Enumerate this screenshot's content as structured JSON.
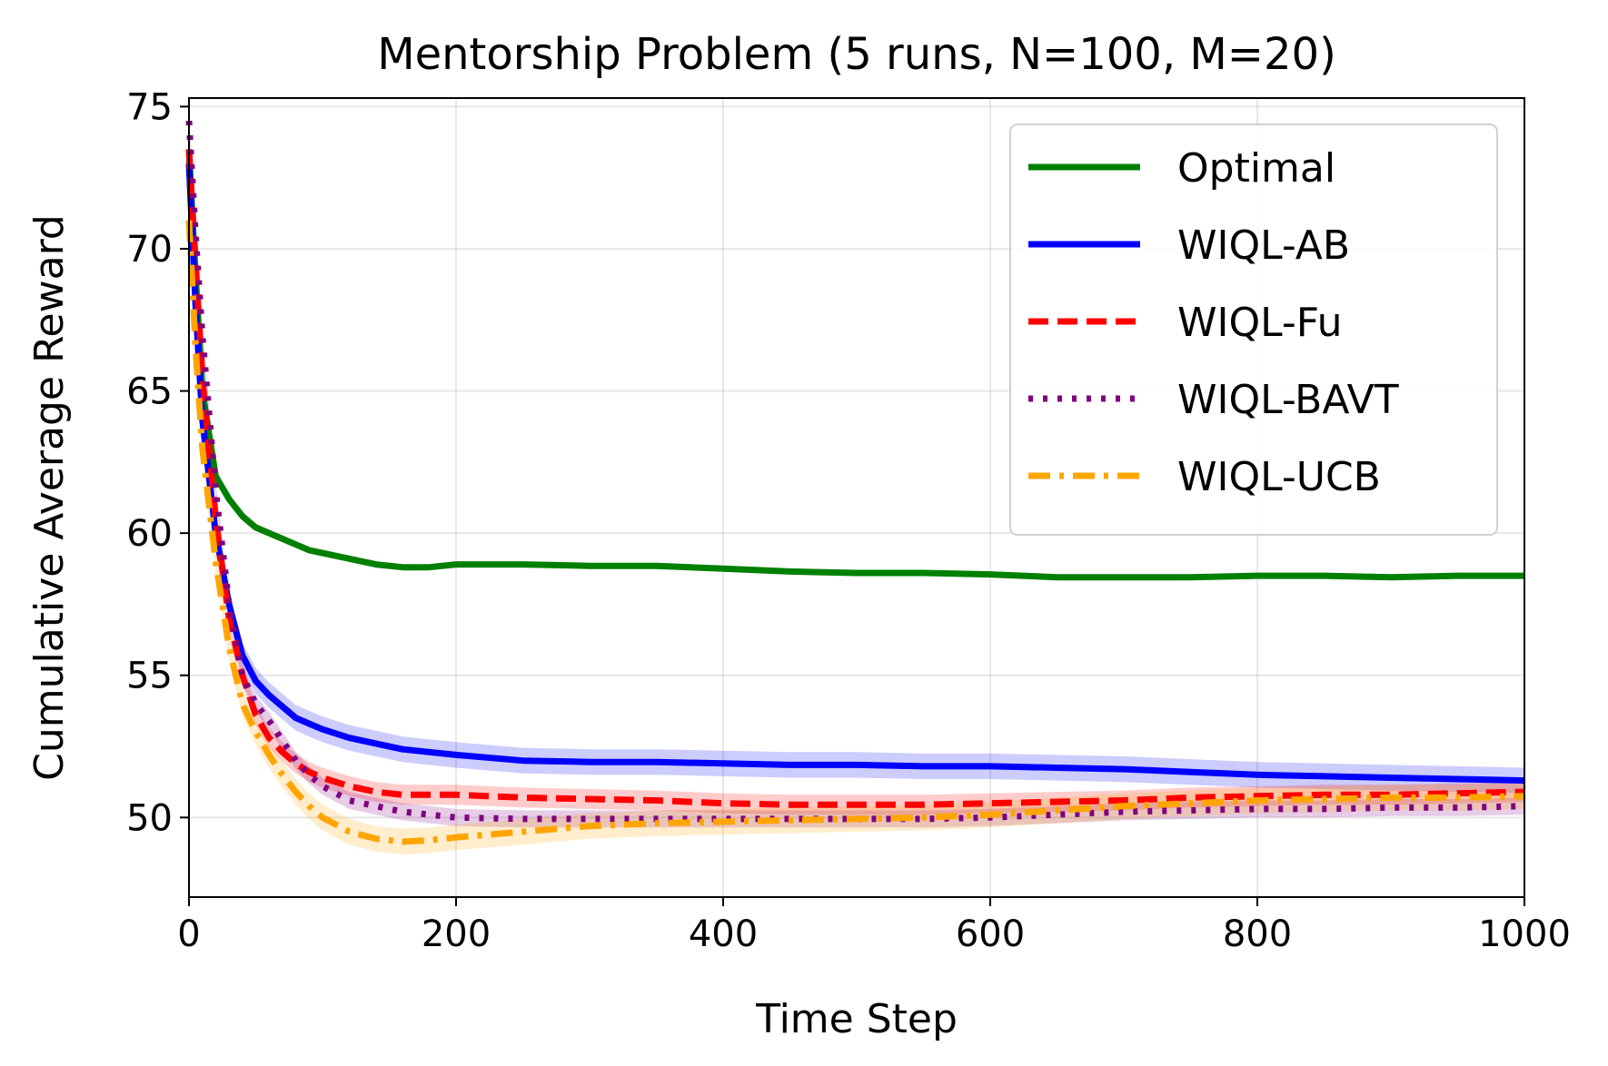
{
  "chart_data": {
    "type": "line",
    "title": "Mentorship Problem (5 runs, N=100, M=20)",
    "xlabel": "Time Step",
    "ylabel": "Cumulative Average Reward",
    "xlim": [
      0,
      1000
    ],
    "ylim": [
      47.2,
      75.3
    ],
    "xticks": [
      0,
      200,
      400,
      600,
      800,
      1000
    ],
    "yticks": [
      50,
      55,
      60,
      65,
      70,
      75
    ],
    "grid": true,
    "legend_position": "top-right",
    "series": [
      {
        "name": "Optimal",
        "color": "#008000",
        "dash": "solid",
        "band": 0.1,
        "x": [
          0,
          5,
          10,
          20,
          30,
          40,
          50,
          60,
          70,
          80,
          90,
          100,
          120,
          140,
          160,
          180,
          200,
          250,
          300,
          350,
          400,
          450,
          500,
          550,
          600,
          650,
          700,
          750,
          800,
          850,
          900,
          950,
          1000
        ],
        "y": [
          73.5,
          69.0,
          65.0,
          62.0,
          61.2,
          60.6,
          60.2,
          60.0,
          59.8,
          59.6,
          59.4,
          59.3,
          59.1,
          58.9,
          58.8,
          58.8,
          58.9,
          58.9,
          58.85,
          58.85,
          58.75,
          58.65,
          58.6,
          58.6,
          58.55,
          58.45,
          58.45,
          58.45,
          58.5,
          58.5,
          58.45,
          58.5,
          58.5
        ]
      },
      {
        "name": "WIQL-AB",
        "color": "#0000ff",
        "dash": "solid",
        "band": 0.45,
        "x": [
          0,
          5,
          10,
          20,
          30,
          40,
          50,
          60,
          70,
          80,
          90,
          100,
          120,
          140,
          160,
          180,
          200,
          250,
          300,
          350,
          400,
          450,
          500,
          550,
          600,
          650,
          700,
          750,
          800,
          850,
          900,
          950,
          1000
        ],
        "y": [
          73.0,
          68.0,
          64.0,
          60.0,
          57.5,
          55.7,
          54.8,
          54.3,
          53.9,
          53.5,
          53.3,
          53.1,
          52.8,
          52.6,
          52.4,
          52.3,
          52.2,
          52.0,
          51.95,
          51.95,
          51.9,
          51.85,
          51.85,
          51.8,
          51.8,
          51.75,
          51.7,
          51.6,
          51.5,
          51.45,
          51.4,
          51.35,
          51.3
        ]
      },
      {
        "name": "WIQL-Fu",
        "color": "#ff0000",
        "dash": "dashed",
        "band": 0.35,
        "x": [
          0,
          5,
          10,
          20,
          30,
          40,
          50,
          60,
          70,
          80,
          90,
          100,
          120,
          140,
          160,
          180,
          200,
          250,
          300,
          350,
          400,
          450,
          500,
          550,
          600,
          650,
          700,
          750,
          800,
          850,
          900,
          950,
          1000
        ],
        "y": [
          73.5,
          69.5,
          65.5,
          60.5,
          57.0,
          55.0,
          53.6,
          52.8,
          52.3,
          51.9,
          51.6,
          51.4,
          51.1,
          50.9,
          50.8,
          50.8,
          50.8,
          50.7,
          50.65,
          50.6,
          50.5,
          50.45,
          50.45,
          50.45,
          50.5,
          50.55,
          50.6,
          50.7,
          50.75,
          50.8,
          50.8,
          50.85,
          50.9
        ]
      },
      {
        "name": "WIQL-BAVT",
        "color": "#800080",
        "dash": "dotted",
        "band": 0.3,
        "x": [
          0,
          5,
          10,
          20,
          30,
          40,
          50,
          60,
          70,
          80,
          90,
          100,
          120,
          140,
          160,
          180,
          200,
          250,
          300,
          350,
          400,
          450,
          500,
          550,
          600,
          650,
          700,
          750,
          800,
          850,
          900,
          950,
          1000
        ],
        "y": [
          74.5,
          70.5,
          67.0,
          61.5,
          57.5,
          55.0,
          54.0,
          53.4,
          52.7,
          52.0,
          51.5,
          51.1,
          50.6,
          50.4,
          50.2,
          50.1,
          50.0,
          49.95,
          49.95,
          49.95,
          49.95,
          49.95,
          49.95,
          49.95,
          50.0,
          50.1,
          50.2,
          50.25,
          50.3,
          50.3,
          50.35,
          50.35,
          50.4
        ]
      },
      {
        "name": "WIQL-UCB",
        "color": "#ffa500",
        "dash": "dashdot",
        "band": 0.45,
        "x": [
          0,
          5,
          10,
          20,
          30,
          40,
          50,
          60,
          70,
          80,
          90,
          100,
          120,
          140,
          160,
          180,
          200,
          250,
          300,
          350,
          400,
          450,
          500,
          550,
          600,
          650,
          700,
          750,
          800,
          850,
          900,
          950,
          1000
        ],
        "y": [
          71.0,
          66.5,
          63.0,
          59.0,
          56.0,
          54.0,
          53.0,
          52.2,
          51.5,
          50.9,
          50.4,
          50.0,
          49.5,
          49.25,
          49.15,
          49.2,
          49.3,
          49.5,
          49.7,
          49.8,
          49.85,
          49.9,
          49.95,
          50.0,
          50.1,
          50.25,
          50.4,
          50.5,
          50.6,
          50.65,
          50.7,
          50.7,
          50.75
        ]
      }
    ]
  }
}
